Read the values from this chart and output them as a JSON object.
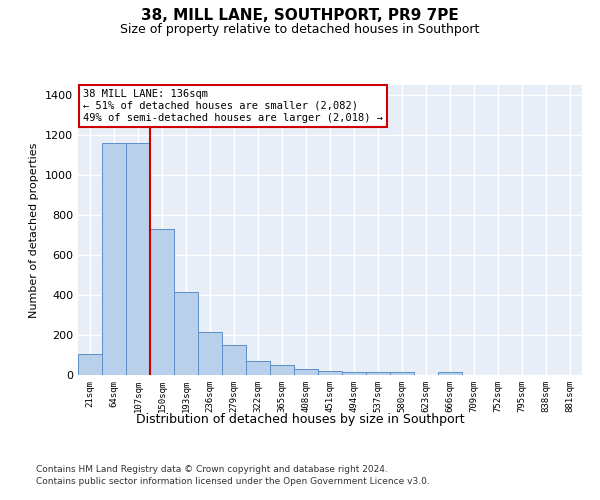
{
  "title": "38, MILL LANE, SOUTHPORT, PR9 7PE",
  "subtitle": "Size of property relative to detached houses in Southport",
  "xlabel": "Distribution of detached houses by size in Southport",
  "ylabel": "Number of detached properties",
  "footnote1": "Contains HM Land Registry data © Crown copyright and database right 2024.",
  "footnote2": "Contains public sector information licensed under the Open Government Licence v3.0.",
  "bar_color": "#b8d0ea",
  "bar_edge_color": "#5b8fc9",
  "background_color": "#e8eef8",
  "grid_color": "#ffffff",
  "vline_color": "#cc0000",
  "annotation_text": "38 MILL LANE: 136sqm\n← 51% of detached houses are smaller (2,082)\n49% of semi-detached houses are larger (2,018) →",
  "annotation_box_edge": "#cc0000",
  "categories": [
    "21sqm",
    "64sqm",
    "107sqm",
    "150sqm",
    "193sqm",
    "236sqm",
    "279sqm",
    "322sqm",
    "365sqm",
    "408sqm",
    "451sqm",
    "494sqm",
    "537sqm",
    "580sqm",
    "623sqm",
    "666sqm",
    "709sqm",
    "752sqm",
    "795sqm",
    "838sqm",
    "881sqm"
  ],
  "bar_values": [
    105,
    1160,
    1160,
    730,
    415,
    215,
    150,
    70,
    48,
    30,
    18,
    15,
    15,
    15,
    0,
    15,
    0,
    0,
    0,
    0,
    0
  ],
  "vline_x": 2.5,
  "ylim_max": 1450,
  "yticks": [
    0,
    200,
    400,
    600,
    800,
    1000,
    1200,
    1400
  ]
}
